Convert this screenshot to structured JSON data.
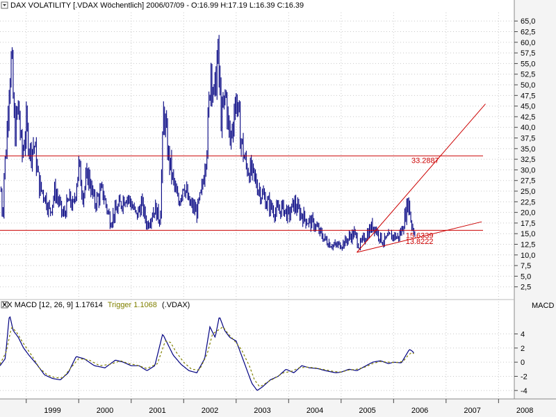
{
  "colors": {
    "price": "#000080",
    "macd": "#000080",
    "trigger": "#808000",
    "trendline": "#cc0000",
    "grid": "#c8c8c8",
    "axis_bg": "#f2f2f2"
  },
  "chart_data": [
    {
      "type": "line",
      "title": "DAX VOLATILITY [.VDAX Wöchentlich] 2006/07/09 - O:16.99 H:17.19 L:16.39 C:16.39",
      "series_style": "weekly high-low bars",
      "ylim": [
        0,
        67
      ],
      "y_ticks": [
        "65,0",
        "62,5",
        "60,0",
        "57,5",
        "55,0",
        "52,5",
        "50,0",
        "47,5",
        "45,0",
        "42,5",
        "40,0",
        "37,5",
        "35,0",
        "32,5",
        "30,0",
        "27,5",
        "25,0",
        "22,5",
        "20,0",
        "17,5",
        "15,0",
        "12,5",
        "10,0",
        "7,5",
        "5,0",
        "2,5"
      ],
      "x_ticks": [
        "1999",
        "2000",
        "2001",
        "2002",
        "2003",
        "2004",
        "2005",
        "2006",
        "2007",
        "2008"
      ],
      "xlim": [
        1998.5,
        2008.3
      ],
      "keypoints": [
        [
          1998.52,
          25
        ],
        [
          1998.55,
          18
        ],
        [
          1998.58,
          30
        ],
        [
          1998.62,
          35
        ],
        [
          1998.67,
          50
        ],
        [
          1998.72,
          56
        ],
        [
          1998.78,
          38
        ],
        [
          1998.85,
          45
        ],
        [
          1998.92,
          33
        ],
        [
          1999.0,
          40
        ],
        [
          1999.08,
          34
        ],
        [
          1999.15,
          36
        ],
        [
          1999.25,
          26
        ],
        [
          1999.35,
          24
        ],
        [
          1999.45,
          20
        ],
        [
          1999.55,
          25
        ],
        [
          1999.7,
          19
        ],
        [
          1999.82,
          23
        ],
        [
          1999.9,
          21
        ],
        [
          2000.0,
          31
        ],
        [
          2000.08,
          24
        ],
        [
          2000.18,
          29
        ],
        [
          2000.3,
          22
        ],
        [
          2000.45,
          25
        ],
        [
          2000.6,
          18
        ],
        [
          2000.75,
          21
        ],
        [
          2000.9,
          24
        ],
        [
          2001.0,
          22
        ],
        [
          2001.1,
          19
        ],
        [
          2001.2,
          22
        ],
        [
          2001.3,
          17
        ],
        [
          2001.45,
          21
        ],
        [
          2001.55,
          18
        ],
        [
          2001.62,
          44
        ],
        [
          2001.7,
          34
        ],
        [
          2001.8,
          27
        ],
        [
          2001.9,
          22
        ],
        [
          2002.0,
          27
        ],
        [
          2002.1,
          22
        ],
        [
          2002.25,
          20
        ],
        [
          2002.35,
          25
        ],
        [
          2002.45,
          37
        ],
        [
          2002.52,
          55
        ],
        [
          2002.58,
          46
        ],
        [
          2002.65,
          57
        ],
        [
          2002.72,
          41
        ],
        [
          2002.8,
          48
        ],
        [
          2002.88,
          36
        ],
        [
          2003.0,
          47
        ],
        [
          2003.08,
          38
        ],
        [
          2003.18,
          31
        ],
        [
          2003.3,
          29
        ],
        [
          2003.45,
          25
        ],
        [
          2003.6,
          22
        ],
        [
          2003.75,
          20
        ],
        [
          2003.9,
          21
        ],
        [
          2004.0,
          19
        ],
        [
          2004.1,
          22
        ],
        [
          2004.2,
          20
        ],
        [
          2004.35,
          18
        ],
        [
          2004.5,
          17
        ],
        [
          2004.6,
          15
        ],
        [
          2004.7,
          13.5
        ],
        [
          2004.8,
          12.5
        ],
        [
          2004.9,
          12
        ],
        [
          2005.0,
          12.5
        ],
        [
          2005.08,
          13
        ],
        [
          2005.15,
          14
        ],
        [
          2005.25,
          15
        ],
        [
          2005.35,
          12
        ],
        [
          2005.45,
          14
        ],
        [
          2005.55,
          16
        ],
        [
          2005.62,
          17
        ],
        [
          2005.7,
          15
        ],
        [
          2005.8,
          13
        ],
        [
          2005.9,
          14
        ],
        [
          2006.0,
          14.5
        ],
        [
          2006.08,
          14
        ],
        [
          2006.15,
          15.5
        ],
        [
          2006.22,
          19
        ],
        [
          2006.28,
          23
        ],
        [
          2006.33,
          18
        ],
        [
          2006.38,
          15.5
        ],
        [
          2006.42,
          16.4
        ]
      ],
      "horizontal_lines": [
        {
          "label": "33.2887",
          "value": 33.2887
        },
        {
          "value": 15.8
        }
      ],
      "trendlines": [
        {
          "from": [
            2005.3,
            10.6
          ],
          "to": [
            2007.75,
            45.5
          ]
        },
        {
          "from": [
            2005.3,
            10.6
          ],
          "to": [
            2007.68,
            17.8
          ]
        }
      ],
      "annotations": [
        {
          "text": "15.6339",
          "x": 2005.33,
          "y": 14.6
        },
        {
          "text": "13.8222",
          "x": 2005.33,
          "y": 13.2
        }
      ]
    },
    {
      "type": "line",
      "title": "XX MACD [12, 26, 9] 1.17614",
      "trigger_label": "Trigger 1.1068",
      "symbol_label": "(.VDAX)",
      "ylabel": "MACD",
      "ylim": [
        -5,
        6.5
      ],
      "y_ticks": [
        "4",
        "2",
        "0",
        "-2",
        "-4"
      ],
      "series": [
        {
          "name": "MACD",
          "keypoints": [
            [
              1998.5,
              -0.5
            ],
            [
              1998.6,
              0.5
            ],
            [
              1998.68,
              6.8
            ],
            [
              1998.75,
              4.5
            ],
            [
              1998.85,
              3.5
            ],
            [
              1998.95,
              2.0
            ],
            [
              1999.05,
              1.0
            ],
            [
              1999.2,
              -0.3
            ],
            [
              1999.35,
              -1.8
            ],
            [
              1999.5,
              -2.3
            ],
            [
              1999.65,
              -2.5
            ],
            [
              1999.8,
              -1.5
            ],
            [
              1999.95,
              0.8
            ],
            [
              2000.1,
              0.5
            ],
            [
              2000.3,
              -0.5
            ],
            [
              2000.5,
              -0.8
            ],
            [
              2000.7,
              0.3
            ],
            [
              2000.85,
              0.0
            ],
            [
              2001.0,
              -0.5
            ],
            [
              2001.15,
              -0.5
            ],
            [
              2001.3,
              -1.2
            ],
            [
              2001.45,
              -0.5
            ],
            [
              2001.6,
              4.0
            ],
            [
              2001.7,
              2.5
            ],
            [
              2001.8,
              1.0
            ],
            [
              2001.95,
              -0.3
            ],
            [
              2002.1,
              -1.2
            ],
            [
              2002.25,
              -1.5
            ],
            [
              2002.4,
              0.5
            ],
            [
              2002.5,
              5.0
            ],
            [
              2002.6,
              3.5
            ],
            [
              2002.68,
              6.5
            ],
            [
              2002.78,
              4.5
            ],
            [
              2002.88,
              3.5
            ],
            [
              2003.0,
              3.0
            ],
            [
              2003.1,
              1.0
            ],
            [
              2003.2,
              -1.0
            ],
            [
              2003.3,
              -3.0
            ],
            [
              2003.4,
              -4.0
            ],
            [
              2003.5,
              -3.5
            ],
            [
              2003.65,
              -2.5
            ],
            [
              2003.8,
              -2.0
            ],
            [
              2003.95,
              -1.0
            ],
            [
              2004.1,
              -1.5
            ],
            [
              2004.25,
              -0.5
            ],
            [
              2004.4,
              -0.8
            ],
            [
              2004.55,
              -0.9
            ],
            [
              2004.7,
              -1.2
            ],
            [
              2004.9,
              -1.5
            ],
            [
              2005.0,
              -1.4
            ],
            [
              2005.15,
              -1.0
            ],
            [
              2005.3,
              -1.2
            ],
            [
              2005.45,
              -0.6
            ],
            [
              2005.6,
              0.0
            ],
            [
              2005.75,
              0.2
            ],
            [
              2005.9,
              -0.2
            ],
            [
              2006.0,
              0.0
            ],
            [
              2006.15,
              -0.1
            ],
            [
              2006.22,
              0.8
            ],
            [
              2006.3,
              1.8
            ],
            [
              2006.35,
              1.6
            ],
            [
              2006.4,
              1.2
            ]
          ]
        },
        {
          "name": "Trigger",
          "keypoints": [
            [
              1998.5,
              -0.3
            ],
            [
              1998.62,
              1.5
            ],
            [
              1998.72,
              5.0
            ],
            [
              1998.82,
              4.2
            ],
            [
              1998.95,
              2.6
            ],
            [
              1999.1,
              1.0
            ],
            [
              1999.25,
              -0.8
            ],
            [
              1999.4,
              -1.8
            ],
            [
              1999.55,
              -2.2
            ],
            [
              1999.7,
              -2.2
            ],
            [
              1999.85,
              -0.8
            ],
            [
              2000.0,
              0.5
            ],
            [
              2000.2,
              0.3
            ],
            [
              2000.4,
              -0.5
            ],
            [
              2000.6,
              -0.3
            ],
            [
              2000.8,
              0.2
            ],
            [
              2000.95,
              -0.2
            ],
            [
              2001.1,
              -0.4
            ],
            [
              2001.3,
              -0.9
            ],
            [
              2001.5,
              -0.2
            ],
            [
              2001.65,
              3.0
            ],
            [
              2001.75,
              2.8
            ],
            [
              2001.85,
              1.5
            ],
            [
              2002.0,
              0.0
            ],
            [
              2002.15,
              -1.0
            ],
            [
              2002.3,
              -1.1
            ],
            [
              2002.45,
              1.2
            ],
            [
              2002.55,
              4.0
            ],
            [
              2002.65,
              4.5
            ],
            [
              2002.75,
              5.0
            ],
            [
              2002.85,
              4.0
            ],
            [
              2002.95,
              3.2
            ],
            [
              2003.1,
              1.8
            ],
            [
              2003.25,
              -0.5
            ],
            [
              2003.35,
              -2.5
            ],
            [
              2003.45,
              -3.5
            ],
            [
              2003.6,
              -2.8
            ],
            [
              2003.75,
              -2.2
            ],
            [
              2003.9,
              -1.5
            ],
            [
              2004.05,
              -1.3
            ],
            [
              2004.2,
              -0.8
            ],
            [
              2004.35,
              -0.7
            ],
            [
              2004.5,
              -0.8
            ],
            [
              2004.65,
              -1.0
            ],
            [
              2004.85,
              -1.3
            ],
            [
              2005.0,
              -1.4
            ],
            [
              2005.15,
              -1.1
            ],
            [
              2005.3,
              -1.0
            ],
            [
              2005.45,
              -0.7
            ],
            [
              2005.6,
              -0.2
            ],
            [
              2005.75,
              0.1
            ],
            [
              2005.9,
              0.0
            ],
            [
              2006.05,
              -0.05
            ],
            [
              2006.18,
              0.1
            ],
            [
              2006.28,
              1.0
            ],
            [
              2006.35,
              1.4
            ],
            [
              2006.4,
              1.1
            ]
          ]
        }
      ]
    }
  ]
}
